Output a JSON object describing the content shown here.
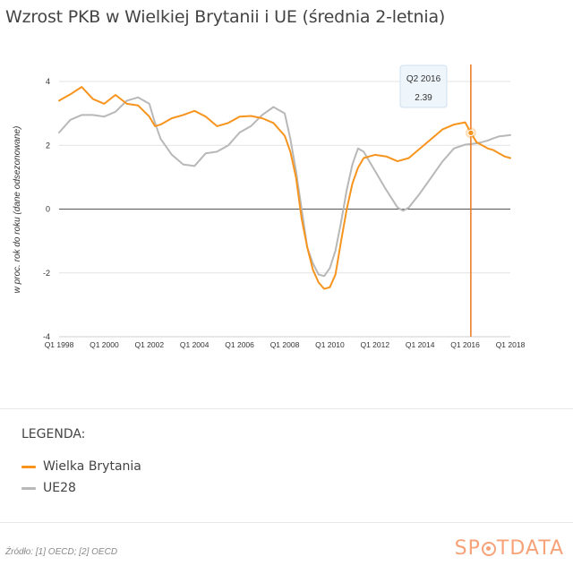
{
  "title": "Wzrost PKB w Wielkiej Brytanii i UE (średnia 2-letnia)",
  "legend": {
    "title": "LEGENDA:",
    "items": [
      {
        "label": "Wielka Brytania",
        "color": "#f7941d"
      },
      {
        "label": "UE28",
        "color": "#b8b8b8"
      }
    ]
  },
  "source": "Źródło: [1] OECD; [2] OECD",
  "brand": {
    "pre": "SP",
    "post": "TDATA"
  },
  "tooltip": {
    "label": "Q2 2016",
    "value": "2.39"
  },
  "chart_data": {
    "type": "line",
    "title": "Wzrost PKB w Wielkiej Brytanii i UE (średnia 2-letnia)",
    "ylabel": "w proc. rok do roku (dane odsezonowane)",
    "xlabel": "",
    "ylim": [
      -4,
      4
    ],
    "xlim": [
      1998,
      2018
    ],
    "yticks": [
      4,
      2,
      0,
      -2,
      -4
    ],
    "xticks": [
      {
        "v": 1998,
        "label": "Q1 1998"
      },
      {
        "v": 2000,
        "label": "Q1 2000"
      },
      {
        "v": 2002,
        "label": "Q1 2002"
      },
      {
        "v": 2004,
        "label": "Q1 2004"
      },
      {
        "v": 2006,
        "label": "Q1 2006"
      },
      {
        "v": 2008,
        "label": "Q1 2008"
      },
      {
        "v": 2010,
        "label": "Q1 2010"
      },
      {
        "v": 2012,
        "label": "Q1 2012"
      },
      {
        "v": 2014,
        "label": "Q1 2014"
      },
      {
        "v": 2016,
        "label": "Q1 2016"
      },
      {
        "v": 2018,
        "label": "Q1 2018"
      }
    ],
    "grid": true,
    "highlight": {
      "x": 2016.25,
      "y": 2.39,
      "label": "Q2 2016"
    },
    "series": [
      {
        "name": "Wielka Brytania",
        "color": "#f7941d",
        "points": [
          [
            1998.0,
            3.4
          ],
          [
            1998.5,
            3.6
          ],
          [
            1999.0,
            3.83
          ],
          [
            1999.5,
            3.45
          ],
          [
            2000.0,
            3.3
          ],
          [
            2000.5,
            3.58
          ],
          [
            2001.0,
            3.3
          ],
          [
            2001.5,
            3.25
          ],
          [
            2002.0,
            2.9
          ],
          [
            2002.25,
            2.6
          ],
          [
            2002.5,
            2.65
          ],
          [
            2003.0,
            2.85
          ],
          [
            2003.5,
            2.95
          ],
          [
            2004.0,
            3.08
          ],
          [
            2004.5,
            2.9
          ],
          [
            2005.0,
            2.6
          ],
          [
            2005.5,
            2.7
          ],
          [
            2006.0,
            2.9
          ],
          [
            2006.5,
            2.92
          ],
          [
            2007.0,
            2.85
          ],
          [
            2007.5,
            2.7
          ],
          [
            2008.0,
            2.3
          ],
          [
            2008.25,
            1.8
          ],
          [
            2008.5,
            1.0
          ],
          [
            2008.75,
            -0.3
          ],
          [
            2009.0,
            -1.2
          ],
          [
            2009.25,
            -1.9
          ],
          [
            2009.5,
            -2.3
          ],
          [
            2009.75,
            -2.5
          ],
          [
            2010.0,
            -2.45
          ],
          [
            2010.25,
            -2.05
          ],
          [
            2010.5,
            -1.0
          ],
          [
            2010.75,
            0.0
          ],
          [
            2011.0,
            0.8
          ],
          [
            2011.25,
            1.3
          ],
          [
            2011.5,
            1.6
          ],
          [
            2011.75,
            1.65
          ],
          [
            2012.0,
            1.7
          ],
          [
            2012.5,
            1.65
          ],
          [
            2013.0,
            1.5
          ],
          [
            2013.5,
            1.6
          ],
          [
            2014.0,
            1.9
          ],
          [
            2014.5,
            2.2
          ],
          [
            2015.0,
            2.5
          ],
          [
            2015.5,
            2.65
          ],
          [
            2016.0,
            2.72
          ],
          [
            2016.25,
            2.39
          ],
          [
            2016.5,
            2.1
          ],
          [
            2016.75,
            2.0
          ],
          [
            2017.0,
            1.9
          ],
          [
            2017.25,
            1.85
          ],
          [
            2017.5,
            1.75
          ],
          [
            2017.75,
            1.65
          ],
          [
            2018.0,
            1.6
          ]
        ]
      },
      {
        "name": "UE28",
        "color": "#b8b8b8",
        "points": [
          [
            1998.0,
            2.4
          ],
          [
            1998.5,
            2.8
          ],
          [
            1999.0,
            2.95
          ],
          [
            1999.5,
            2.95
          ],
          [
            2000.0,
            2.9
          ],
          [
            2000.5,
            3.05
          ],
          [
            2001.0,
            3.4
          ],
          [
            2001.5,
            3.5
          ],
          [
            2002.0,
            3.3
          ],
          [
            2002.25,
            2.7
          ],
          [
            2002.5,
            2.2
          ],
          [
            2003.0,
            1.7
          ],
          [
            2003.5,
            1.4
          ],
          [
            2004.0,
            1.35
          ],
          [
            2004.5,
            1.75
          ],
          [
            2005.0,
            1.8
          ],
          [
            2005.5,
            2.0
          ],
          [
            2006.0,
            2.4
          ],
          [
            2006.5,
            2.6
          ],
          [
            2007.0,
            2.95
          ],
          [
            2007.5,
            3.2
          ],
          [
            2008.0,
            3.0
          ],
          [
            2008.25,
            2.2
          ],
          [
            2008.5,
            1.2
          ],
          [
            2008.75,
            0.0
          ],
          [
            2009.0,
            -1.2
          ],
          [
            2009.25,
            -1.7
          ],
          [
            2009.5,
            -2.05
          ],
          [
            2009.75,
            -2.1
          ],
          [
            2010.0,
            -1.85
          ],
          [
            2010.25,
            -1.3
          ],
          [
            2010.5,
            -0.4
          ],
          [
            2010.75,
            0.6
          ],
          [
            2011.0,
            1.4
          ],
          [
            2011.25,
            1.9
          ],
          [
            2011.5,
            1.8
          ],
          [
            2011.75,
            1.5
          ],
          [
            2012.0,
            1.2
          ],
          [
            2012.5,
            0.6
          ],
          [
            2013.0,
            0.05
          ],
          [
            2013.25,
            -0.05
          ],
          [
            2013.5,
            0.05
          ],
          [
            2014.0,
            0.5
          ],
          [
            2014.5,
            1.0
          ],
          [
            2015.0,
            1.5
          ],
          [
            2015.5,
            1.9
          ],
          [
            2016.0,
            2.02
          ],
          [
            2016.5,
            2.06
          ],
          [
            2016.75,
            2.1
          ],
          [
            2017.0,
            2.15
          ],
          [
            2017.25,
            2.22
          ],
          [
            2017.5,
            2.28
          ],
          [
            2017.75,
            2.3
          ],
          [
            2018.0,
            2.32
          ]
        ]
      }
    ]
  }
}
